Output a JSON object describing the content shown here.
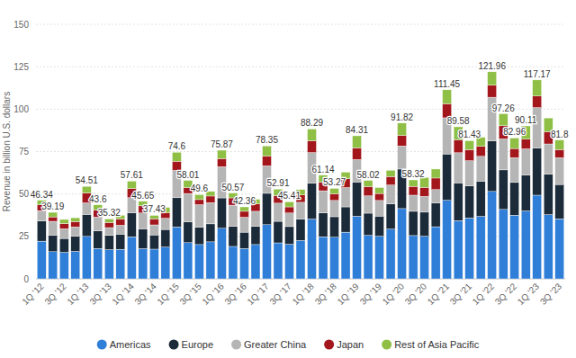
{
  "chart_data": {
    "type": "bar",
    "stacked": true,
    "grid": true,
    "legend": "bottom",
    "y_label": "Revenue in billion U.S. dollars",
    "ylim": [
      0,
      150
    ],
    "yticks": [
      0,
      25,
      50,
      75,
      100,
      125,
      150
    ],
    "categories": [
      "1Q '12",
      null,
      "3Q '12",
      null,
      "1Q '13",
      null,
      "3Q '13",
      null,
      "1Q '14",
      null,
      "3Q '14",
      null,
      "1Q '15",
      null,
      "3Q '15",
      null,
      "1Q '16",
      null,
      "3Q '16",
      null,
      "1Q '17",
      null,
      "3Q '17",
      null,
      "1Q '18",
      null,
      "3Q '18",
      null,
      "1Q '19",
      null,
      "3Q '19",
      null,
      "1Q '20",
      null,
      "3Q '20",
      null,
      "1Q '21",
      null,
      "3Q '21",
      null,
      "1Q '22",
      null,
      "3Q '22",
      null,
      "1Q '23",
      null,
      "3Q '23"
    ],
    "series": [
      {
        "name": "Americas",
        "color": "#2f7ed8",
        "values": [
          22.2,
          16.0,
          15.6,
          16.2,
          25.0,
          17.9,
          17.2,
          17.4,
          24.8,
          17.8,
          17.5,
          18.7,
          30.6,
          21.3,
          20.2,
          21.8,
          29.8,
          19.1,
          17.9,
          20.2,
          31.9,
          21.2,
          20.4,
          22.6,
          35.2,
          24.8,
          24.5,
          27.5,
          36.9,
          25.6,
          25.1,
          29.3,
          41.4,
          25.5,
          25.1,
          30.7,
          46.3,
          34.3,
          35.9,
          36.8,
          51.5,
          40.9,
          37.5,
          40.0,
          49.3,
          37.8,
          35.4
        ]
      },
      {
        "name": "Europe",
        "color": "#1c2b3a",
        "values": [
          11.9,
          9.8,
          8.2,
          9.0,
          13.0,
          10.3,
          8.4,
          9.0,
          14.2,
          11.7,
          8.4,
          10.4,
          17.2,
          12.2,
          10.3,
          10.6,
          17.9,
          11.8,
          9.6,
          10.8,
          18.5,
          12.7,
          10.4,
          12.7,
          21.2,
          14.1,
          12.1,
          14.9,
          20.2,
          13.1,
          11.9,
          14.9,
          23.3,
          14.3,
          14.2,
          14.0,
          27.3,
          22.3,
          18.9,
          20.8,
          29.7,
          23.3,
          19.3,
          21.1,
          27.7,
          23.9,
          20.2
        ]
      },
      {
        "name": "Greater China",
        "color": "#b5b5b5",
        "values": [
          6.1,
          8.1,
          5.7,
          5.4,
          6.8,
          8.2,
          4.6,
          5.2,
          8.8,
          9.3,
          5.9,
          6.6,
          16.1,
          16.8,
          13.2,
          12.5,
          18.4,
          12.5,
          8.8,
          8.8,
          16.2,
          10.7,
          8.0,
          9.8,
          18.0,
          13.0,
          9.6,
          11.4,
          13.2,
          10.2,
          9.2,
          11.1,
          13.6,
          9.5,
          9.3,
          7.9,
          21.3,
          17.7,
          14.8,
          14.6,
          25.8,
          18.3,
          14.6,
          15.5,
          23.9,
          17.8,
          15.8
        ]
      },
      {
        "name": "Japan",
        "color": "#a3161c",
        "values": [
          3.4,
          2.6,
          3.1,
          3.1,
          5.8,
          4.2,
          3.0,
          3.6,
          5.4,
          4.2,
          3.6,
          3.4,
          5.4,
          3.5,
          3.0,
          3.9,
          4.8,
          4.3,
          3.5,
          4.3,
          5.8,
          4.5,
          3.6,
          4.3,
          7.0,
          5.1,
          3.9,
          5.2,
          6.9,
          5.5,
          4.1,
          5.0,
          6.2,
          5.2,
          5.3,
          6.8,
          8.3,
          7.7,
          6.5,
          5.9,
          7.1,
          7.7,
          5.4,
          5.7,
          6.8,
          7.2,
          4.8
        ]
      },
      {
        "name": "Rest of Asia Pacific",
        "color": "#8fc045",
        "values": [
          2.7,
          2.7,
          2.4,
          2.3,
          3.9,
          3.0,
          2.1,
          2.3,
          4.4,
          2.7,
          2.0,
          3.0,
          5.3,
          4.2,
          2.9,
          2.7,
          4.9,
          2.9,
          2.6,
          2.8,
          5.9,
          3.8,
          3.0,
          3.2,
          6.9,
          4.1,
          3.2,
          3.9,
          7.1,
          3.6,
          3.5,
          3.7,
          7.3,
          3.8,
          5.8,
          5.3,
          8.2,
          7.6,
          5.3,
          5.3,
          7.9,
          7.1,
          6.2,
          7.8,
          9.5,
          8.1,
          5.6
        ]
      }
    ],
    "totals": [
      46.34,
      39.19,
      null,
      null,
      54.51,
      43.6,
      35.32,
      null,
      57.61,
      45.65,
      37.43,
      null,
      74.6,
      58.01,
      49.6,
      null,
      75.87,
      50.57,
      42.36,
      null,
      78.35,
      52.91,
      45.41,
      null,
      88.29,
      61.14,
      53.27,
      null,
      84.31,
      58.02,
      null,
      null,
      91.82,
      58.32,
      null,
      null,
      111.45,
      89.58,
      81.43,
      null,
      121.96,
      97.26,
      82.96,
      90.11,
      117.17,
      null,
      81.8
    ]
  }
}
